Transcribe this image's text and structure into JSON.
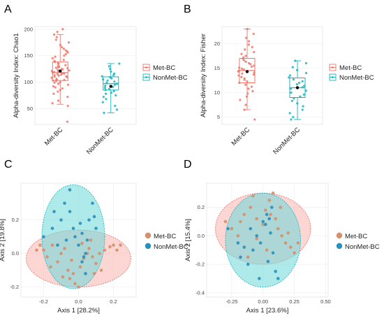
{
  "colors": {
    "met": "#F0756B",
    "nonmet": "#15B6C1",
    "met_pcoa": "#D4906C",
    "nonmet_pcoa": "#2A8FBA",
    "ellipse_met": "#F8B5AE",
    "ellipse_nonmet": "#6ED8DA"
  },
  "panels": {
    "A": {
      "letter": "A"
    },
    "B": {
      "letter": "B"
    },
    "C": {
      "letter": "C"
    },
    "D": {
      "letter": "D"
    }
  },
  "chart_data": [
    {
      "id": "A",
      "type": "box",
      "categories": [
        "Met-BC",
        "NonMet-BC"
      ],
      "xlabel": "",
      "ylabel": "Alpha-diversity Index: Chao1",
      "ylim": [
        20,
        205
      ],
      "yticks": [
        50,
        100,
        150,
        200
      ],
      "grid": true,
      "legend": {
        "position": "right",
        "entries": [
          "Met-BC",
          "NonMet-BC"
        ]
      },
      "boxes": [
        {
          "name": "Met-BC",
          "whisker_low": 58,
          "q1": 103,
          "median": 118,
          "q3": 138,
          "whisker_high": 190,
          "mean": 121
        },
        {
          "name": "NonMet-BC",
          "whisker_low": 42,
          "q1": 85,
          "median": 97,
          "q3": 110,
          "whisker_high": 135,
          "mean": 92
        }
      ],
      "points": [
        {
          "group": "Met-BC",
          "values": [
            25,
            55,
            60,
            65,
            72,
            78,
            82,
            85,
            88,
            90,
            92,
            95,
            97,
            99,
            100,
            102,
            103,
            104,
            105,
            106,
            108,
            109,
            110,
            111,
            112,
            113,
            114,
            115,
            116,
            117,
            118,
            119,
            120,
            121,
            122,
            123,
            124,
            125,
            126,
            127,
            128,
            129,
            130,
            132,
            134,
            136,
            138,
            140,
            142,
            145,
            148,
            150,
            153,
            156,
            158,
            160,
            163,
            166,
            170,
            175,
            180,
            185,
            190,
            195,
            200
          ]
        },
        {
          "group": "NonMet-BC",
          "values": [
            42,
            48,
            55,
            62,
            68,
            72,
            75,
            78,
            80,
            83,
            85,
            87,
            89,
            91,
            93,
            95,
            97,
            99,
            101,
            103,
            105,
            107,
            109,
            111,
            113,
            116,
            120,
            125,
            130,
            135
          ]
        }
      ]
    },
    {
      "id": "B",
      "type": "box",
      "categories": [
        "Met-BC",
        "NonMet-BC"
      ],
      "xlabel": "",
      "ylabel": "Alpha-diversity Index: Fisher",
      "ylim": [
        3.5,
        23.5
      ],
      "yticks": [
        5,
        10,
        15,
        20
      ],
      "grid": true,
      "legend": {
        "position": "right",
        "entries": [
          "Met-BC",
          "NonMet-BC"
        ]
      },
      "boxes": [
        {
          "name": "Met-BC",
          "whisker_low": 6.5,
          "q1": 12,
          "median": 14.5,
          "q3": 17,
          "whisker_high": 23,
          "mean": 14.3
        },
        {
          "name": "NonMet-BC",
          "whisker_low": 4.5,
          "q1": 9,
          "median": 11,
          "q3": 13,
          "whisker_high": 16.5,
          "mean": 11
        }
      ],
      "points": [
        {
          "group": "Met-BC",
          "values": [
            4.5,
            6.5,
            7.5,
            8.5,
            9.2,
            9.8,
            10.3,
            10.8,
            11.2,
            11.6,
            12.0,
            12.3,
            12.6,
            12.9,
            13.2,
            13.5,
            13.7,
            13.9,
            14.1,
            14.3,
            14.5,
            14.7,
            14.9,
            15.1,
            15.3,
            15.5,
            15.8,
            16.0,
            16.3,
            16.6,
            16.9,
            17.2,
            17.5,
            17.9,
            18.3,
            18.8,
            19.3,
            19.8,
            20.5,
            21.2,
            22.0,
            23.0
          ]
        },
        {
          "group": "NonMet-BC",
          "values": [
            4.5,
            5.0,
            5.8,
            6.5,
            7.2,
            7.8,
            8.3,
            8.8,
            9.2,
            9.6,
            10.0,
            10.4,
            10.8,
            11.1,
            11.4,
            11.7,
            12.0,
            12.3,
            12.7,
            13.1,
            13.5,
            14.0,
            14.6,
            15.2,
            16.0,
            16.5
          ]
        }
      ]
    },
    {
      "id": "C",
      "type": "scatter",
      "xlabel": "Axis 1 [28.2%]",
      "ylabel": "Axis 2 [19.8%]",
      "xlim": [
        -0.33,
        0.33
      ],
      "ylim": [
        -0.26,
        0.42
      ],
      "xticks": [
        -0.2,
        0.0,
        0.2
      ],
      "yticks": [
        -0.2,
        0.0,
        0.2
      ],
      "grid": true,
      "legend": {
        "position": "right",
        "entries": [
          "Met-BC",
          "NonMet-BC"
        ]
      },
      "ellipses": [
        {
          "group": "Met-BC",
          "cx": 0.0,
          "cy": -0.03,
          "rx": 0.3,
          "ry": 0.17
        },
        {
          "group": "NonMet-BC",
          "cx": -0.03,
          "cy": 0.1,
          "rx": 0.18,
          "ry": 0.31
        }
      ],
      "series": [
        {
          "name": "Met-BC",
          "points": [
            [
              -0.22,
              0.05
            ],
            [
              -0.2,
              0.02
            ],
            [
              -0.18,
              -0.02
            ],
            [
              -0.15,
              0.05
            ],
            [
              -0.12,
              -0.05
            ],
            [
              -0.1,
              0.0
            ],
            [
              -0.08,
              0.03
            ],
            [
              -0.06,
              -0.1
            ],
            [
              -0.05,
              -0.15
            ],
            [
              -0.03,
              -0.12
            ],
            [
              -0.02,
              -0.18
            ],
            [
              0.0,
              -0.2
            ],
            [
              0.01,
              -0.08
            ],
            [
              0.03,
              -0.03
            ],
            [
              0.05,
              0.0
            ],
            [
              0.06,
              0.03
            ],
            [
              0.08,
              -0.02
            ],
            [
              0.1,
              -0.06
            ],
            [
              0.12,
              0.0
            ],
            [
              0.15,
              0.02
            ],
            [
              0.18,
              0.04
            ],
            [
              0.2,
              0.05
            ],
            [
              0.22,
              0.02
            ],
            [
              0.24,
              0.05
            ],
            [
              -0.24,
              0.02
            ],
            [
              -0.16,
              -0.08
            ],
            [
              0.02,
              0.06
            ],
            [
              0.09,
              -0.12
            ],
            [
              -0.04,
              -0.04
            ],
            [
              0.13,
              -0.1
            ],
            [
              -0.09,
              -0.14
            ],
            [
              0.07,
              0.08
            ]
          ]
        },
        {
          "name": "NonMet-BC",
          "points": [
            [
              -0.2,
              0.1
            ],
            [
              -0.15,
              0.15
            ],
            [
              -0.12,
              0.05
            ],
            [
              -0.1,
              0.2
            ],
            [
              -0.08,
              0.3
            ],
            [
              -0.05,
              0.25
            ],
            [
              -0.03,
              0.15
            ],
            [
              -0.02,
              0.1
            ],
            [
              0.0,
              0.05
            ],
            [
              0.02,
              0.12
            ],
            [
              0.03,
              -0.02
            ],
            [
              0.04,
              0.0
            ],
            [
              0.05,
              0.08
            ],
            [
              0.06,
              0.2
            ],
            [
              0.08,
              0.3
            ],
            [
              0.1,
              0.15
            ],
            [
              -0.05,
              0.38
            ],
            [
              0.02,
              -0.05
            ],
            [
              0.04,
              -0.12
            ],
            [
              -0.14,
              0.25
            ],
            [
              0.09,
              0.22
            ],
            [
              -0.07,
              0.08
            ],
            [
              0.01,
              0.18
            ]
          ]
        }
      ]
    },
    {
      "id": "D",
      "type": "scatter",
      "xlabel": "Axis 1 [23.6%]",
      "ylabel": "Axis 2 [15.4%]",
      "xlim": [
        -0.45,
        0.52
      ],
      "ylim": [
        -0.43,
        0.37
      ],
      "xticks": [
        -0.25,
        0.0,
        0.25,
        0.5
      ],
      "xtick_labels": [
        "-0.25",
        "0.00",
        "0.25",
        "0.50"
      ],
      "yticks": [
        -0.4,
        -0.2,
        0.0,
        0.2
      ],
      "grid": true,
      "legend": {
        "position": "right",
        "entries": [
          "Met-BC",
          "NonMet-BC"
        ]
      },
      "ellipses": [
        {
          "group": "Met-BC",
          "cx": 0.0,
          "cy": 0.05,
          "rx": 0.38,
          "ry": 0.25
        },
        {
          "group": "NonMet-BC",
          "cx": 0.0,
          "cy": -0.03,
          "rx": 0.3,
          "ry": 0.33
        }
      ],
      "series": [
        {
          "name": "Met-BC",
          "points": [
            [
              -0.3,
              0.1
            ],
            [
              -0.25,
              0.05
            ],
            [
              -0.2,
              0.0
            ],
            [
              -0.15,
              0.15
            ],
            [
              -0.1,
              0.2
            ],
            [
              -0.05,
              0.12
            ],
            [
              0.0,
              0.08
            ],
            [
              0.02,
              0.18
            ],
            [
              0.05,
              0.25
            ],
            [
              0.08,
              0.3
            ],
            [
              0.1,
              0.12
            ],
            [
              0.12,
              0.05
            ],
            [
              0.15,
              0.0
            ],
            [
              0.18,
              -0.05
            ],
            [
              0.2,
              0.02
            ],
            [
              0.22,
              -0.08
            ],
            [
              0.25,
              -0.12
            ],
            [
              -0.05,
              -0.02
            ],
            [
              0.03,
              -0.1
            ],
            [
              -0.12,
              -0.15
            ],
            [
              0.06,
              0.15
            ],
            [
              0.14,
              0.2
            ],
            [
              -0.08,
              0.28
            ],
            [
              0.28,
              -0.05
            ],
            [
              -0.18,
              0.1
            ]
          ]
        },
        {
          "name": "NonMet-BC",
          "points": [
            [
              -0.28,
              0.05
            ],
            [
              -0.2,
              -0.05
            ],
            [
              -0.18,
              -0.15
            ],
            [
              -0.12,
              -0.2
            ],
            [
              -0.08,
              -0.1
            ],
            [
              -0.05,
              0.0
            ],
            [
              -0.02,
              -0.05
            ],
            [
              0.0,
              0.1
            ],
            [
              0.02,
              0.08
            ],
            [
              0.03,
              0.15
            ],
            [
              0.05,
              0.12
            ],
            [
              0.06,
              0.02
            ],
            [
              0.08,
              -0.12
            ],
            [
              0.1,
              -0.25
            ],
            [
              0.12,
              -0.3
            ],
            [
              -0.03,
              -0.3
            ],
            [
              0.04,
              -0.18
            ],
            [
              -0.15,
              -0.08
            ],
            [
              0.07,
              0.2
            ],
            [
              -0.1,
              0.05
            ]
          ]
        }
      ]
    }
  ]
}
